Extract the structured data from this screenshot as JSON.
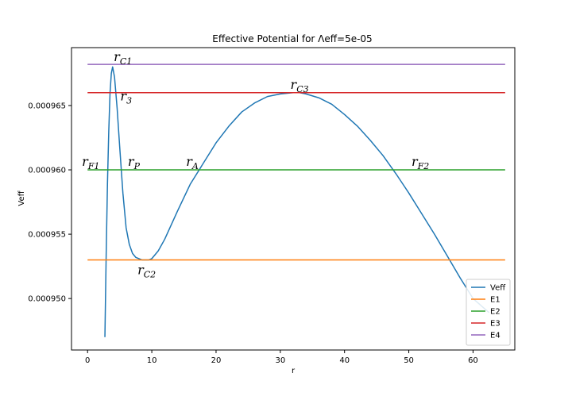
{
  "chart_data": {
    "type": "line",
    "title": "Effective Potential for Λeff=5e-05",
    "xlabel": "r",
    "ylabel": "Veff",
    "xlim": [
      -2.5,
      66.5
    ],
    "ylim": [
      0.000946,
      0.0009695
    ],
    "x_ticks": [
      0,
      10,
      20,
      30,
      40,
      50,
      60
    ],
    "y_ticks": [
      0.00095,
      0.000955,
      0.00096,
      0.000965
    ],
    "y_tick_labels": [
      "0.000950",
      "0.000955",
      "0.000960",
      "0.000965"
    ],
    "grid": false,
    "legend_position": "bottom-right",
    "series": [
      {
        "name": "Veff",
        "color": "#1f77b4",
        "x": [
          2.7,
          2.9,
          3.1,
          3.3,
          3.5,
          3.7,
          3.9,
          4.2,
          4.6,
          5.0,
          5.5,
          6.0,
          6.5,
          7.0,
          7.5,
          8.0,
          8.5,
          9.0,
          9.5,
          10.0,
          11.0,
          12.0,
          14.0,
          16.0,
          18.0,
          20.0,
          22.0,
          24.0,
          26.0,
          28.0,
          30.0,
          32.0,
          33.0,
          34.0,
          36.0,
          38.0,
          40.0,
          42.0,
          44.0,
          46.0,
          48.0,
          50.0,
          52.0,
          54.0,
          56.0,
          58.0,
          60.0,
          62.5
        ],
        "values": [
          0.000947,
          0.0009535,
          0.000959,
          0.000963,
          0.000966,
          0.0009675,
          0.000968,
          0.0009672,
          0.0009648,
          0.0009618,
          0.0009582,
          0.0009555,
          0.0009542,
          0.0009535,
          0.0009532,
          0.0009531,
          0.000953,
          0.000953,
          0.000953,
          0.0009531,
          0.0009537,
          0.0009546,
          0.0009568,
          0.0009589,
          0.0009605,
          0.0009621,
          0.0009634,
          0.0009645,
          0.0009652,
          0.0009657,
          0.0009659,
          0.000966,
          0.000966,
          0.0009659,
          0.0009656,
          0.0009651,
          0.0009643,
          0.0009634,
          0.0009623,
          0.0009611,
          0.0009597,
          0.0009582,
          0.0009566,
          0.000955,
          0.0009533,
          0.0009516,
          0.00095,
          0.0009489
        ]
      },
      {
        "name": "E1",
        "color": "#ff7f0e",
        "x": [
          0,
          65
        ],
        "values": [
          0.000953,
          0.000953
        ]
      },
      {
        "name": "E2",
        "color": "#2ca02c",
        "x": [
          0,
          65
        ],
        "values": [
          0.00096,
          0.00096
        ]
      },
      {
        "name": "E3",
        "color": "#d62728",
        "x": [
          0,
          65
        ],
        "values": [
          0.000966,
          0.000966
        ]
      },
      {
        "name": "E4",
        "color": "#9467bd",
        "x": [
          0,
          65
        ],
        "values": [
          0.0009682,
          0.0009682
        ]
      }
    ],
    "annotations": [
      {
        "label": "r",
        "sub": "C1",
        "x": 5.5,
        "y": 0.00096845,
        "anchor": "middle"
      },
      {
        "label": "r",
        "sub": "3",
        "x": 6.0,
        "y": 0.0009654,
        "anchor": "middle"
      },
      {
        "label": "r",
        "sub": "C3",
        "x": 33.0,
        "y": 0.0009663,
        "anchor": "middle"
      },
      {
        "label": "r",
        "sub": "F1",
        "x": 0.5,
        "y": 0.0009603,
        "anchor": "middle"
      },
      {
        "label": "r",
        "sub": "P",
        "x": 7.2,
        "y": 0.0009603,
        "anchor": "middle"
      },
      {
        "label": "r",
        "sub": "A",
        "x": 16.3,
        "y": 0.0009603,
        "anchor": "middle"
      },
      {
        "label": "r",
        "sub": "F2",
        "x": 51.8,
        "y": 0.0009603,
        "anchor": "middle"
      },
      {
        "label": "r",
        "sub": "C2",
        "x": 9.2,
        "y": 0.0009519,
        "anchor": "middle"
      }
    ]
  }
}
